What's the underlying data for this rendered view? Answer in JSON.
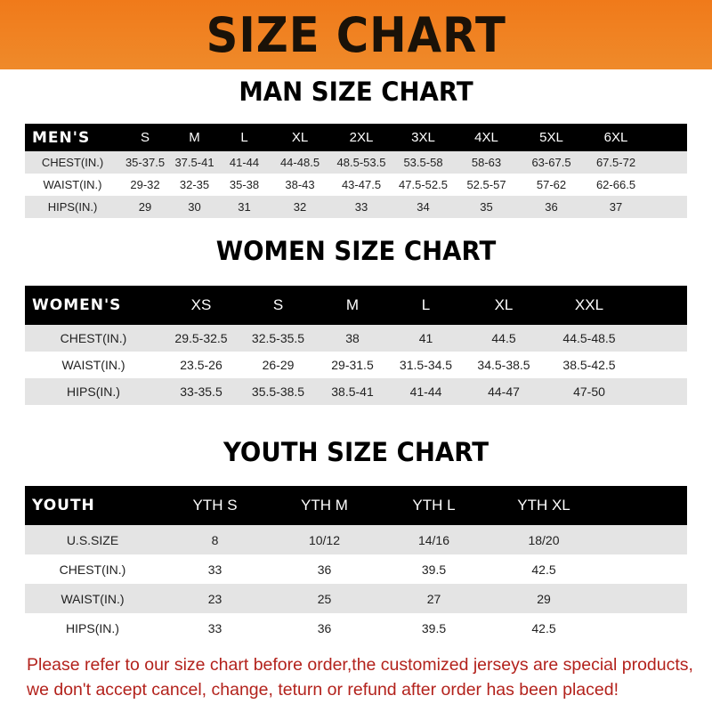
{
  "banner_title": "SIZE CHART",
  "men": {
    "title": "MAN SIZE CHART",
    "header": [
      "MEN'S",
      "S",
      "M",
      "L",
      "XL",
      "2XL",
      "3XL",
      "4XL",
      "5XL",
      "6XL"
    ],
    "rows": [
      [
        "CHEST(IN.)",
        "35-37.5",
        "37.5-41",
        "41-44",
        "44-48.5",
        "48.5-53.5",
        "53.5-58",
        "58-63",
        "63-67.5",
        "67.5-72"
      ],
      [
        "WAIST(IN.)",
        "29-32",
        "32-35",
        "35-38",
        "38-43",
        "43-47.5",
        "47.5-52.5",
        "52.5-57",
        "57-62",
        "62-66.5"
      ],
      [
        "HIPS(IN.)",
        "29",
        "30",
        "31",
        "32",
        "33",
        "34",
        "35",
        "36",
        "37"
      ]
    ]
  },
  "women": {
    "title": "WOMEN SIZE CHART",
    "header": [
      "WOMEN'S",
      "XS",
      "S",
      "M",
      "L",
      "XL",
      "XXL"
    ],
    "rows": [
      [
        "CHEST(IN.)",
        "29.5-32.5",
        "32.5-35.5",
        "38",
        "41",
        "44.5",
        "44.5-48.5"
      ],
      [
        "WAIST(IN.)",
        "23.5-26",
        "26-29",
        "29-31.5",
        "31.5-34.5",
        "34.5-38.5",
        "38.5-42.5"
      ],
      [
        "HIPS(IN.)",
        "33-35.5",
        "35.5-38.5",
        "38.5-41",
        "41-44",
        "44-47",
        "47-50"
      ]
    ]
  },
  "youth": {
    "title": "YOUTH SIZE CHART",
    "header": [
      "YOUTH",
      "YTH S",
      "YTH M",
      "YTH L",
      "YTH XL"
    ],
    "rows": [
      [
        "U.S.SIZE",
        "8",
        "10/12",
        "14/16",
        "18/20"
      ],
      [
        "CHEST(IN.)",
        "33",
        "36",
        "39.5",
        "42.5"
      ],
      [
        "WAIST(IN.)",
        "23",
        "25",
        "27",
        "29"
      ],
      [
        "HIPS(IN.)",
        "33",
        "36",
        "39.5",
        "42.5"
      ]
    ]
  },
  "note": "Please refer to our size chart before order,the customized jerseys are special products, we don't accept cancel, change, teturn or refund after order has been placed!",
  "colors": {
    "banner": "#f07a1a",
    "header_row": "#000000",
    "stripe": "#e4e4e4",
    "note": "#b3221c"
  }
}
